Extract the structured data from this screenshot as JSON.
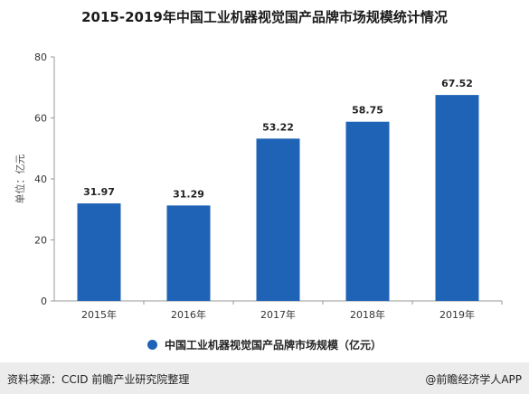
{
  "colors": {
    "bar": "#1f63b6",
    "axis": "#999999",
    "grid": "#e5e5e5"
  },
  "chart_data": {
    "type": "bar",
    "title": "2015-2019年中国工业机器视觉国产品牌市场规模统计情况",
    "categories": [
      "2015年",
      "2016年",
      "2017年",
      "2018年",
      "2019年"
    ],
    "series": [
      {
        "name": "中国工业机器视觉国产品牌市场规模（亿元）",
        "values": [
          31.97,
          31.29,
          53.22,
          58.75,
          67.52
        ]
      }
    ],
    "ylabel": "单位：亿元",
    "ylim": [
      0,
      80
    ],
    "yticks": [
      0,
      20,
      40,
      60,
      80
    ],
    "grid": false,
    "legend": "bottom"
  },
  "footer": {
    "source": "资料来源：CCID 前瞻产业研究院整理",
    "brand": "@前瞻经济学人APP"
  }
}
